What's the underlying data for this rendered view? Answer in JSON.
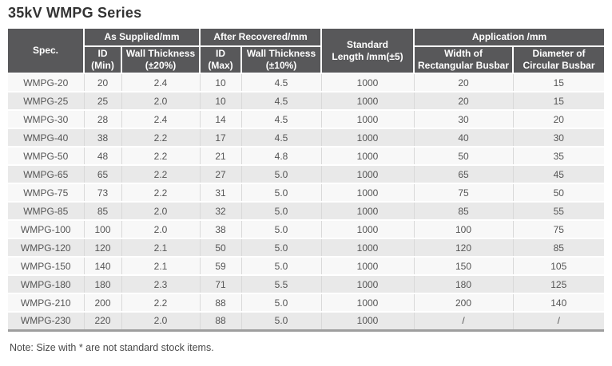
{
  "page_title": "35kV WMPG Series",
  "note": "Note: Size with * are not standard stock items.",
  "colors": {
    "header_bg": "#58585a",
    "row_odd": "#f8f8f8",
    "row_even": "#e9e9e9",
    "table_bottom_border": "#9e9e9e",
    "title_text": "#333333",
    "cell_text": "#555555"
  },
  "table": {
    "header": {
      "spec": "Spec.",
      "as_supplied": "As Supplied/mm",
      "after_recovered": "After Recovered/mm",
      "standard_length": "Standard\nLength /mm(±5)",
      "application": "Application /mm",
      "id_min": "ID\n(Min)",
      "wall_thickness_20": "Wall Thickness\n(±20%)",
      "id_max": "ID\n(Max)",
      "wall_thickness_10": "Wall Thickness\n(±10%)",
      "width_rectangular_busbar": "Width of\nRectangular Busbar",
      "diameter_circular_busbar": "Diameter of\nCircular Busbar"
    },
    "columns": [
      "spec",
      "id_min",
      "wall_thickness_20",
      "id_max",
      "wall_thickness_10",
      "standard_length",
      "width_rectangular_busbar",
      "diameter_circular_busbar"
    ],
    "rows": [
      [
        "WMPG-20",
        "20",
        "2.4",
        "10",
        "4.5",
        "1000",
        "20",
        "15"
      ],
      [
        "WMPG-25",
        "25",
        "2.0",
        "10",
        "4.5",
        "1000",
        "20",
        "15"
      ],
      [
        "WMPG-30",
        "28",
        "2.4",
        "14",
        "4.5",
        "1000",
        "30",
        "20"
      ],
      [
        "WMPG-40",
        "38",
        "2.2",
        "17",
        "4.5",
        "1000",
        "40",
        "30"
      ],
      [
        "WMPG-50",
        "48",
        "2.2",
        "21",
        "4.8",
        "1000",
        "50",
        "35"
      ],
      [
        "WMPG-65",
        "65",
        "2.2",
        "27",
        "5.0",
        "1000",
        "65",
        "45"
      ],
      [
        "WMPG-75",
        "73",
        "2.2",
        "31",
        "5.0",
        "1000",
        "75",
        "50"
      ],
      [
        "WMPG-85",
        "85",
        "2.0",
        "32",
        "5.0",
        "1000",
        "85",
        "55"
      ],
      [
        "WMPG-100",
        "100",
        "2.0",
        "38",
        "5.0",
        "1000",
        "100",
        "75"
      ],
      [
        "WMPG-120",
        "120",
        "2.1",
        "50",
        "5.0",
        "1000",
        "120",
        "85"
      ],
      [
        "WMPG-150",
        "140",
        "2.1",
        "59",
        "5.0",
        "1000",
        "150",
        "105"
      ],
      [
        "WMPG-180",
        "180",
        "2.3",
        "71",
        "5.5",
        "1000",
        "180",
        "125"
      ],
      [
        "WMPG-210",
        "200",
        "2.2",
        "88",
        "5.0",
        "1000",
        "200",
        "140"
      ],
      [
        "WMPG-230",
        "220",
        "2.0",
        "88",
        "5.0",
        "1000",
        "/",
        "/"
      ]
    ]
  }
}
